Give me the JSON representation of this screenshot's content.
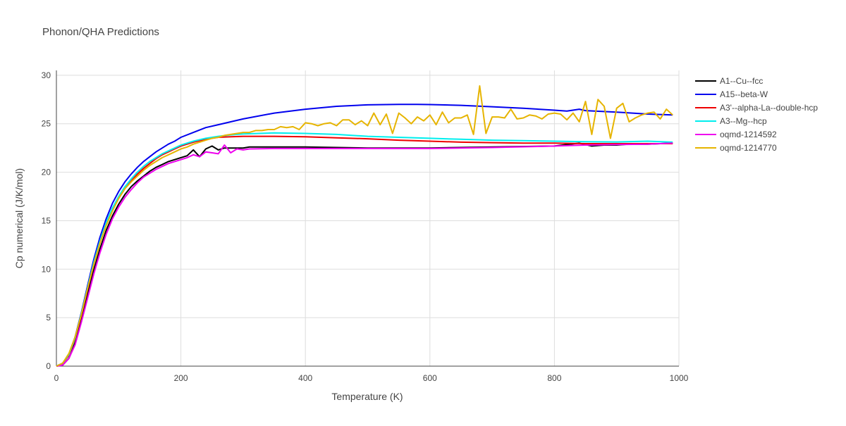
{
  "chart_data": {
    "type": "line",
    "title": "Phonon/QHA Predictions",
    "xlabel": "Temperature (K)",
    "ylabel": "Cp numerical (J/K/mol)",
    "xlim": [
      0,
      1000
    ],
    "ylim": [
      0,
      30.5
    ],
    "x_ticks": [
      0,
      200,
      400,
      600,
      800,
      1000
    ],
    "y_ticks": [
      0,
      5,
      10,
      15,
      20,
      25,
      30
    ],
    "grid": true,
    "legend_position": "right",
    "series": [
      {
        "name": "A1--Cu--fcc",
        "color": "#000000",
        "points": [
          [
            0,
            0
          ],
          [
            10,
            0.1
          ],
          [
            20,
            0.8
          ],
          [
            30,
            2.4
          ],
          [
            40,
            4.8
          ],
          [
            50,
            7.4
          ],
          [
            60,
            9.9
          ],
          [
            70,
            12.1
          ],
          [
            80,
            14.0
          ],
          [
            90,
            15.5
          ],
          [
            100,
            16.7
          ],
          [
            110,
            17.7
          ],
          [
            120,
            18.5
          ],
          [
            130,
            19.1
          ],
          [
            140,
            19.6
          ],
          [
            150,
            20.1
          ],
          [
            160,
            20.5
          ],
          [
            170,
            20.8
          ],
          [
            180,
            21.1
          ],
          [
            190,
            21.3
          ],
          [
            200,
            21.5
          ],
          [
            210,
            21.7
          ],
          [
            220,
            22.3
          ],
          [
            230,
            21.6
          ],
          [
            240,
            22.4
          ],
          [
            250,
            22.7
          ],
          [
            260,
            22.3
          ],
          [
            270,
            22.5
          ],
          [
            280,
            22.5
          ],
          [
            300,
            22.5
          ],
          [
            310,
            22.6
          ],
          [
            350,
            22.6
          ],
          [
            400,
            22.6
          ],
          [
            500,
            22.5
          ],
          [
            600,
            22.5
          ],
          [
            700,
            22.6
          ],
          [
            800,
            22.7
          ],
          [
            840,
            23.0
          ],
          [
            860,
            22.7
          ],
          [
            880,
            22.8
          ],
          [
            900,
            22.8
          ],
          [
            920,
            22.9
          ],
          [
            950,
            22.9
          ],
          [
            990,
            23.0
          ]
        ]
      },
      {
        "name": "A15--beta-W",
        "color": "#0000ee",
        "points": [
          [
            0,
            0
          ],
          [
            10,
            0.3
          ],
          [
            20,
            1.2
          ],
          [
            30,
            3.0
          ],
          [
            40,
            5.5
          ],
          [
            50,
            8.3
          ],
          [
            60,
            11.0
          ],
          [
            70,
            13.3
          ],
          [
            80,
            15.2
          ],
          [
            90,
            16.8
          ],
          [
            100,
            18.0
          ],
          [
            110,
            19.0
          ],
          [
            120,
            19.8
          ],
          [
            130,
            20.5
          ],
          [
            140,
            21.1
          ],
          [
            150,
            21.6
          ],
          [
            160,
            22.1
          ],
          [
            170,
            22.5
          ],
          [
            180,
            22.9
          ],
          [
            190,
            23.2
          ],
          [
            200,
            23.6
          ],
          [
            220,
            24.1
          ],
          [
            240,
            24.6
          ],
          [
            260,
            24.9
          ],
          [
            280,
            25.2
          ],
          [
            300,
            25.5
          ],
          [
            350,
            26.1
          ],
          [
            400,
            26.5
          ],
          [
            450,
            26.8
          ],
          [
            500,
            26.95
          ],
          [
            550,
            27.0
          ],
          [
            580,
            27.0
          ],
          [
            600,
            26.98
          ],
          [
            650,
            26.9
          ],
          [
            700,
            26.75
          ],
          [
            750,
            26.6
          ],
          [
            800,
            26.4
          ],
          [
            820,
            26.3
          ],
          [
            840,
            26.5
          ],
          [
            850,
            26.35
          ],
          [
            900,
            26.2
          ],
          [
            950,
            26.0
          ],
          [
            990,
            25.9
          ]
        ]
      },
      {
        "name": "A3'--alpha-La--double-hcp",
        "color": "#ee0000",
        "points": [
          [
            0,
            0
          ],
          [
            10,
            0.3
          ],
          [
            20,
            1.1
          ],
          [
            30,
            2.8
          ],
          [
            40,
            5.2
          ],
          [
            50,
            7.9
          ],
          [
            60,
            10.5
          ],
          [
            70,
            12.7
          ],
          [
            80,
            14.6
          ],
          [
            90,
            16.1
          ],
          [
            100,
            17.3
          ],
          [
            110,
            18.3
          ],
          [
            120,
            19.1
          ],
          [
            130,
            19.8
          ],
          [
            140,
            20.4
          ],
          [
            150,
            20.9
          ],
          [
            160,
            21.4
          ],
          [
            170,
            21.8
          ],
          [
            180,
            22.1
          ],
          [
            190,
            22.4
          ],
          [
            200,
            22.7
          ],
          [
            220,
            23.1
          ],
          [
            240,
            23.4
          ],
          [
            260,
            23.6
          ],
          [
            280,
            23.65
          ],
          [
            300,
            23.7
          ],
          [
            350,
            23.7
          ],
          [
            400,
            23.65
          ],
          [
            450,
            23.55
          ],
          [
            500,
            23.45
          ],
          [
            550,
            23.3
          ],
          [
            600,
            23.2
          ],
          [
            650,
            23.1
          ],
          [
            700,
            23.05
          ],
          [
            750,
            23.0
          ],
          [
            800,
            23.0
          ],
          [
            850,
            22.95
          ],
          [
            900,
            22.95
          ],
          [
            950,
            22.95
          ],
          [
            990,
            22.95
          ]
        ]
      },
      {
        "name": "A3--Mg--hcp",
        "color": "#00eeee",
        "points": [
          [
            0,
            0
          ],
          [
            10,
            0.3
          ],
          [
            20,
            1.2
          ],
          [
            30,
            2.9
          ],
          [
            40,
            5.4
          ],
          [
            50,
            8.1
          ],
          [
            60,
            10.7
          ],
          [
            70,
            12.9
          ],
          [
            80,
            14.8
          ],
          [
            90,
            16.3
          ],
          [
            100,
            17.5
          ],
          [
            110,
            18.5
          ],
          [
            120,
            19.3
          ],
          [
            130,
            20.0
          ],
          [
            140,
            20.6
          ],
          [
            150,
            21.1
          ],
          [
            160,
            21.5
          ],
          [
            170,
            21.9
          ],
          [
            180,
            22.2
          ],
          [
            190,
            22.5
          ],
          [
            200,
            22.8
          ],
          [
            220,
            23.2
          ],
          [
            240,
            23.5
          ],
          [
            260,
            23.7
          ],
          [
            280,
            23.85
          ],
          [
            300,
            23.95
          ],
          [
            350,
            24.05
          ],
          [
            400,
            24.0
          ],
          [
            450,
            23.9
          ],
          [
            500,
            23.7
          ],
          [
            550,
            23.6
          ],
          [
            600,
            23.5
          ],
          [
            650,
            23.4
          ],
          [
            700,
            23.3
          ],
          [
            750,
            23.25
          ],
          [
            800,
            23.2
          ],
          [
            850,
            23.15
          ],
          [
            900,
            23.12
          ],
          [
            950,
            23.2
          ],
          [
            990,
            23.1
          ]
        ]
      },
      {
        "name": "oqmd-1214592",
        "color": "#ee00ee",
        "points": [
          [
            0,
            0
          ],
          [
            10,
            0.1
          ],
          [
            20,
            0.8
          ],
          [
            30,
            2.2
          ],
          [
            40,
            4.5
          ],
          [
            50,
            7.0
          ],
          [
            60,
            9.5
          ],
          [
            70,
            11.7
          ],
          [
            80,
            13.6
          ],
          [
            90,
            15.2
          ],
          [
            100,
            16.4
          ],
          [
            110,
            17.4
          ],
          [
            120,
            18.2
          ],
          [
            130,
            18.9
          ],
          [
            140,
            19.5
          ],
          [
            150,
            19.9
          ],
          [
            160,
            20.3
          ],
          [
            170,
            20.6
          ],
          [
            180,
            20.9
          ],
          [
            190,
            21.1
          ],
          [
            200,
            21.3
          ],
          [
            210,
            21.5
          ],
          [
            220,
            21.8
          ],
          [
            230,
            21.6
          ],
          [
            240,
            22.1
          ],
          [
            250,
            22.0
          ],
          [
            260,
            21.9
          ],
          [
            270,
            22.8
          ],
          [
            280,
            22.0
          ],
          [
            290,
            22.4
          ],
          [
            300,
            22.3
          ],
          [
            310,
            22.4
          ],
          [
            350,
            22.45
          ],
          [
            400,
            22.45
          ],
          [
            500,
            22.45
          ],
          [
            600,
            22.45
          ],
          [
            700,
            22.55
          ],
          [
            800,
            22.7
          ],
          [
            850,
            22.8
          ],
          [
            900,
            22.85
          ],
          [
            950,
            22.9
          ],
          [
            990,
            23.0
          ]
        ]
      },
      {
        "name": "oqmd-1214770",
        "color": "#e6b400",
        "points": [
          [
            0,
            0
          ],
          [
            10,
            0.3
          ],
          [
            20,
            1.3
          ],
          [
            30,
            3.0
          ],
          [
            40,
            5.3
          ],
          [
            50,
            8.0
          ],
          [
            60,
            10.5
          ],
          [
            70,
            12.7
          ],
          [
            80,
            14.5
          ],
          [
            90,
            16.0
          ],
          [
            100,
            17.3
          ],
          [
            110,
            18.3
          ],
          [
            120,
            19.0
          ],
          [
            130,
            19.6
          ],
          [
            140,
            20.2
          ],
          [
            150,
            20.7
          ],
          [
            160,
            21.1
          ],
          [
            170,
            21.5
          ],
          [
            180,
            21.8
          ],
          [
            190,
            22.1
          ],
          [
            200,
            22.4
          ],
          [
            210,
            22.6
          ],
          [
            220,
            22.9
          ],
          [
            230,
            23.1
          ],
          [
            240,
            23.3
          ],
          [
            250,
            23.5
          ],
          [
            260,
            23.6
          ],
          [
            270,
            23.8
          ],
          [
            280,
            23.9
          ],
          [
            290,
            24.0
          ],
          [
            300,
            24.1
          ],
          [
            310,
            24.1
          ],
          [
            320,
            24.3
          ],
          [
            330,
            24.3
          ],
          [
            340,
            24.4
          ],
          [
            350,
            24.4
          ],
          [
            360,
            24.7
          ],
          [
            370,
            24.6
          ],
          [
            380,
            24.7
          ],
          [
            390,
            24.4
          ],
          [
            400,
            25.1
          ],
          [
            410,
            25.0
          ],
          [
            420,
            24.8
          ],
          [
            430,
            25.0
          ],
          [
            440,
            25.1
          ],
          [
            450,
            24.8
          ],
          [
            460,
            25.4
          ],
          [
            470,
            25.4
          ],
          [
            480,
            24.9
          ],
          [
            490,
            25.3
          ],
          [
            500,
            24.8
          ],
          [
            510,
            26.1
          ],
          [
            520,
            24.9
          ],
          [
            530,
            26.0
          ],
          [
            540,
            24.0
          ],
          [
            550,
            26.1
          ],
          [
            560,
            25.6
          ],
          [
            570,
            25.0
          ],
          [
            580,
            25.7
          ],
          [
            590,
            25.3
          ],
          [
            600,
            25.9
          ],
          [
            610,
            24.9
          ],
          [
            620,
            26.2
          ],
          [
            630,
            25.1
          ],
          [
            640,
            25.6
          ],
          [
            650,
            25.6
          ],
          [
            660,
            25.9
          ],
          [
            670,
            23.9
          ],
          [
            680,
            28.9
          ],
          [
            690,
            24.0
          ],
          [
            700,
            25.7
          ],
          [
            710,
            25.7
          ],
          [
            720,
            25.6
          ],
          [
            730,
            26.5
          ],
          [
            740,
            25.5
          ],
          [
            750,
            25.6
          ],
          [
            760,
            25.9
          ],
          [
            770,
            25.8
          ],
          [
            780,
            25.5
          ],
          [
            790,
            26.0
          ],
          [
            800,
            26.1
          ],
          [
            810,
            26.0
          ],
          [
            820,
            25.4
          ],
          [
            830,
            26.1
          ],
          [
            840,
            25.2
          ],
          [
            850,
            27.3
          ],
          [
            860,
            23.9
          ],
          [
            870,
            27.5
          ],
          [
            880,
            26.8
          ],
          [
            890,
            23.5
          ],
          [
            900,
            26.6
          ],
          [
            910,
            27.1
          ],
          [
            920,
            25.2
          ],
          [
            930,
            25.6
          ],
          [
            940,
            25.9
          ],
          [
            950,
            26.1
          ],
          [
            960,
            26.2
          ],
          [
            970,
            25.5
          ],
          [
            980,
            26.5
          ],
          [
            990,
            25.9
          ]
        ]
      }
    ]
  }
}
